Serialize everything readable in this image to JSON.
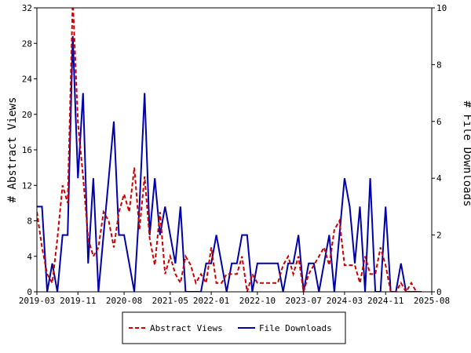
{
  "colors": {
    "abstract_views": "#cc0000",
    "file_downloads": "#0000aa",
    "axis": "#000000",
    "background": "#ffffff"
  },
  "chart_data": {
    "type": "line",
    "title": "",
    "xlabel": "",
    "ylabel": "# Abstract Views",
    "y2label": "# File Downloads",
    "ylim": [
      0,
      32
    ],
    "y2lim": [
      0,
      10
    ],
    "yticks": [
      0,
      4,
      8,
      12,
      16,
      20,
      24,
      28,
      32
    ],
    "y2ticks": [
      0,
      2,
      4,
      6,
      8,
      10
    ],
    "x_range": [
      "2019-03",
      "2025-08"
    ],
    "xticks": [
      "2019-03",
      "2019-11",
      "2020-08",
      "2021-05",
      "2022-01",
      "2022-10",
      "2023-07",
      "2024-03",
      "2024-11",
      "2025-08"
    ],
    "grid": false,
    "legend": "bottom-center",
    "series": [
      {
        "name": "Abstract Views",
        "axis": "left",
        "style": "dashed",
        "points": [
          [
            "2019-03",
            9
          ],
          [
            "2019-04",
            5
          ],
          [
            "2019-05",
            2
          ],
          [
            "2019-06",
            1
          ],
          [
            "2019-07",
            6
          ],
          [
            "2019-08",
            12
          ],
          [
            "2019-09",
            10
          ],
          [
            "2019-10",
            33
          ],
          [
            "2019-11",
            19
          ],
          [
            "2019-12",
            13
          ],
          [
            "2020-01",
            6
          ],
          [
            "2020-02",
            4
          ],
          [
            "2020-03",
            5
          ],
          [
            "2020-04",
            9
          ],
          [
            "2020-05",
            8
          ],
          [
            "2020-06",
            5
          ],
          [
            "2020-07",
            9
          ],
          [
            "2020-08",
            11
          ],
          [
            "2020-09",
            9
          ],
          [
            "2020-10",
            14
          ],
          [
            "2020-11",
            7
          ],
          [
            "2020-12",
            13
          ],
          [
            "2021-01",
            6
          ],
          [
            "2021-02",
            3
          ],
          [
            "2021-03",
            9
          ],
          [
            "2021-04",
            2
          ],
          [
            "2021-05",
            4
          ],
          [
            "2021-06",
            2
          ],
          [
            "2021-07",
            1
          ],
          [
            "2021-08",
            4
          ],
          [
            "2021-09",
            3
          ],
          [
            "2021-10",
            1
          ],
          [
            "2021-11",
            2
          ],
          [
            "2021-12",
            1
          ],
          [
            "2022-01",
            5
          ],
          [
            "2022-02",
            1
          ],
          [
            "2022-03",
            1
          ],
          [
            "2022-04",
            2
          ],
          [
            "2022-05",
            2
          ],
          [
            "2022-06",
            2
          ],
          [
            "2022-07",
            4
          ],
          [
            "2022-08",
            0
          ],
          [
            "2022-09",
            2
          ],
          [
            "2022-10",
            1
          ],
          [
            "2022-11",
            1
          ],
          [
            "2022-12",
            1
          ],
          [
            "2023-01",
            1
          ],
          [
            "2023-02",
            1
          ],
          [
            "2023-03",
            3
          ],
          [
            "2023-04",
            4
          ],
          [
            "2023-05",
            2
          ],
          [
            "2023-06",
            4
          ],
          [
            "2023-07",
            0
          ],
          [
            "2023-08",
            2
          ],
          [
            "2023-09",
            3
          ],
          [
            "2023-10",
            4
          ],
          [
            "2023-11",
            5
          ],
          [
            "2023-12",
            3
          ],
          [
            "2024-01",
            7
          ],
          [
            "2024-02",
            8
          ],
          [
            "2024-03",
            3
          ],
          [
            "2024-04",
            3
          ],
          [
            "2024-05",
            3
          ],
          [
            "2024-06",
            1
          ],
          [
            "2024-07",
            4
          ],
          [
            "2024-08",
            2
          ],
          [
            "2024-09",
            2
          ],
          [
            "2024-10",
            5
          ],
          [
            "2024-11",
            3
          ],
          [
            "2024-12",
            0
          ],
          [
            "2025-01",
            0
          ],
          [
            "2025-02",
            1
          ],
          [
            "2025-03",
            0
          ],
          [
            "2025-04",
            1
          ],
          [
            "2025-05",
            0
          ],
          [
            "2025-06",
            0
          ]
        ]
      },
      {
        "name": "File Downloads",
        "axis": "right",
        "style": "solid",
        "points": [
          [
            "2019-03",
            3
          ],
          [
            "2019-04",
            3
          ],
          [
            "2019-05",
            0
          ],
          [
            "2019-06",
            1
          ],
          [
            "2019-07",
            0
          ],
          [
            "2019-08",
            2
          ],
          [
            "2019-09",
            2
          ],
          [
            "2019-10",
            9
          ],
          [
            "2019-11",
            4
          ],
          [
            "2019-12",
            7
          ],
          [
            "2020-01",
            1
          ],
          [
            "2020-02",
            4
          ],
          [
            "2020-03",
            0
          ],
          [
            "2020-04",
            2
          ],
          [
            "2020-05",
            4
          ],
          [
            "2020-06",
            6
          ],
          [
            "2020-07",
            2
          ],
          [
            "2020-08",
            2
          ],
          [
            "2020-09",
            1
          ],
          [
            "2020-10",
            0
          ],
          [
            "2020-11",
            3
          ],
          [
            "2020-12",
            7
          ],
          [
            "2021-01",
            2
          ],
          [
            "2021-02",
            4
          ],
          [
            "2021-03",
            2
          ],
          [
            "2021-04",
            3
          ],
          [
            "2021-05",
            2
          ],
          [
            "2021-06",
            1
          ],
          [
            "2021-07",
            3
          ],
          [
            "2021-08",
            0
          ],
          [
            "2021-09",
            0
          ],
          [
            "2021-10",
            0
          ],
          [
            "2021-11",
            0
          ],
          [
            "2021-12",
            1
          ],
          [
            "2022-01",
            1
          ],
          [
            "2022-02",
            2
          ],
          [
            "2022-03",
            1
          ],
          [
            "2022-04",
            0
          ],
          [
            "2022-05",
            1
          ],
          [
            "2022-06",
            1
          ],
          [
            "2022-07",
            2
          ],
          [
            "2022-08",
            2
          ],
          [
            "2022-09",
            0
          ],
          [
            "2022-10",
            1
          ],
          [
            "2022-11",
            1
          ],
          [
            "2022-12",
            1
          ],
          [
            "2023-01",
            1
          ],
          [
            "2023-02",
            1
          ],
          [
            "2023-03",
            0
          ],
          [
            "2023-04",
            1
          ],
          [
            "2023-05",
            1
          ],
          [
            "2023-06",
            2
          ],
          [
            "2023-07",
            0
          ],
          [
            "2023-08",
            1
          ],
          [
            "2023-09",
            1
          ],
          [
            "2023-10",
            0
          ],
          [
            "2023-11",
            1
          ],
          [
            "2023-12",
            2
          ],
          [
            "2024-01",
            0
          ],
          [
            "2024-02",
            2
          ],
          [
            "2024-03",
            4
          ],
          [
            "2024-04",
            3
          ],
          [
            "2024-05",
            1
          ],
          [
            "2024-06",
            3
          ],
          [
            "2024-07",
            0
          ],
          [
            "2024-08",
            4
          ],
          [
            "2024-09",
            0
          ],
          [
            "2024-10",
            0
          ],
          [
            "2024-11",
            3
          ],
          [
            "2024-12",
            0
          ],
          [
            "2025-01",
            0
          ],
          [
            "2025-02",
            1
          ],
          [
            "2025-03",
            0
          ],
          [
            "2025-04",
            0
          ],
          [
            "2025-05",
            0
          ],
          [
            "2025-06",
            0
          ]
        ]
      }
    ]
  }
}
